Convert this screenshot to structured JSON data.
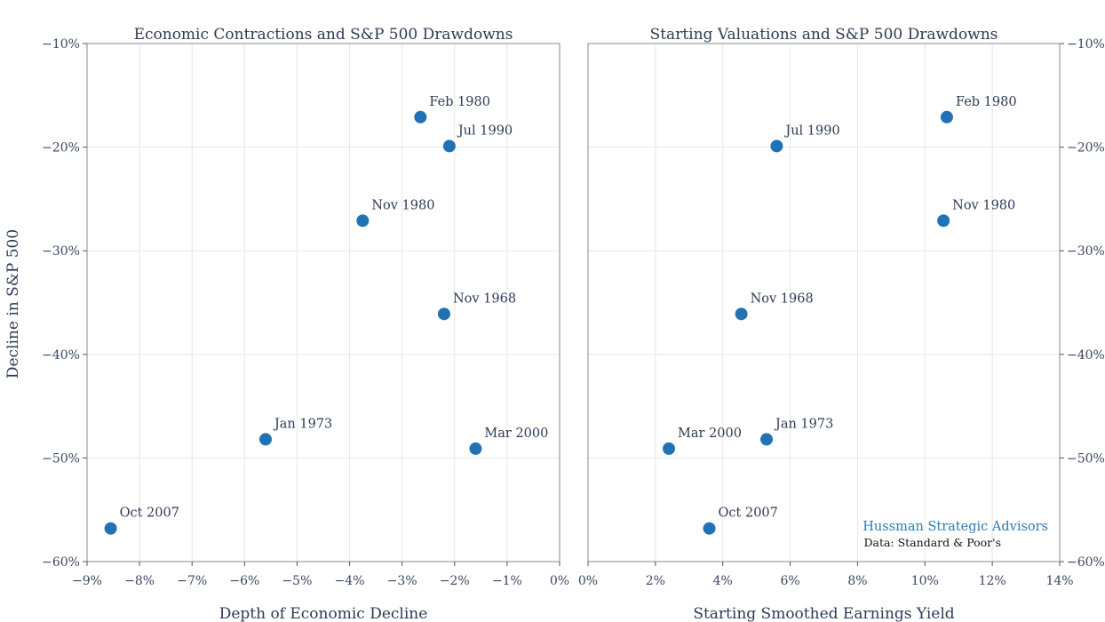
{
  "ylabel": "Decline in S&P 500",
  "brand": "Hussman Strategic Advisors",
  "source": "Data: Standard & Poor's",
  "chart_data": [
    {
      "type": "scatter",
      "title": "Economic Contractions and S&P 500 Drawdowns",
      "xlabel": "Depth of Economic Decline",
      "ylabel": "Decline in S&P 500",
      "xlim": [
        -9,
        0
      ],
      "ylim": [
        -60,
        -10
      ],
      "xticks": [
        -9,
        -8,
        -7,
        -6,
        -5,
        -4,
        -3,
        -2,
        -1,
        0
      ],
      "xtick_labels": [
        "−9%",
        "−8%",
        "−7%",
        "−6%",
        "−5%",
        "−4%",
        "−3%",
        "−2%",
        "−1%",
        "0%"
      ],
      "yticks": [
        -10,
        -20,
        -30,
        -40,
        -50,
        -60
      ],
      "ytick_labels": [
        "−10%",
        "−20%",
        "−30%",
        "−40%",
        "−50%",
        "−60%"
      ],
      "grid": true,
      "points": [
        {
          "label": "Feb 1980",
          "x": -2.65,
          "y": -17.1
        },
        {
          "label": "Jul 1990",
          "x": -2.1,
          "y": -19.9
        },
        {
          "label": "Nov 1980",
          "x": -3.75,
          "y": -27.1
        },
        {
          "label": "Nov 1968",
          "x": -2.2,
          "y": -36.1
        },
        {
          "label": "Jan 1973",
          "x": -5.6,
          "y": -48.2
        },
        {
          "label": "Mar 2000",
          "x": -1.6,
          "y": -49.1
        },
        {
          "label": "Oct 2007",
          "x": -8.55,
          "y": -56.8
        }
      ]
    },
    {
      "type": "scatter",
      "title": "Starting Valuations and S&P 500 Drawdowns",
      "xlabel": "Starting Smoothed Earnings Yield",
      "ylabel": "",
      "xlim": [
        0,
        14
      ],
      "ylim": [
        -60,
        -10
      ],
      "xticks": [
        0,
        2,
        4,
        6,
        8,
        10,
        12,
        14
      ],
      "xtick_labels": [
        "0%",
        "2%",
        "4%",
        "6%",
        "8%",
        "10%",
        "12%",
        "14%"
      ],
      "yticks": [
        -10,
        -20,
        -30,
        -40,
        -50,
        -60
      ],
      "ytick_labels": [
        "−10%",
        "−20%",
        "−30%",
        "−40%",
        "−50%",
        "−60%"
      ],
      "grid": true,
      "points": [
        {
          "label": "Feb 1980",
          "x": 10.65,
          "y": -17.1
        },
        {
          "label": "Jul 1990",
          "x": 5.6,
          "y": -19.9
        },
        {
          "label": "Nov 1980",
          "x": 10.55,
          "y": -27.1
        },
        {
          "label": "Nov 1968",
          "x": 4.55,
          "y": -36.1
        },
        {
          "label": "Jan 1973",
          "x": 5.3,
          "y": -48.2
        },
        {
          "label": "Mar 2000",
          "x": 2.4,
          "y": -49.1
        },
        {
          "label": "Oct 2007",
          "x": 3.6,
          "y": -56.8
        }
      ]
    }
  ]
}
